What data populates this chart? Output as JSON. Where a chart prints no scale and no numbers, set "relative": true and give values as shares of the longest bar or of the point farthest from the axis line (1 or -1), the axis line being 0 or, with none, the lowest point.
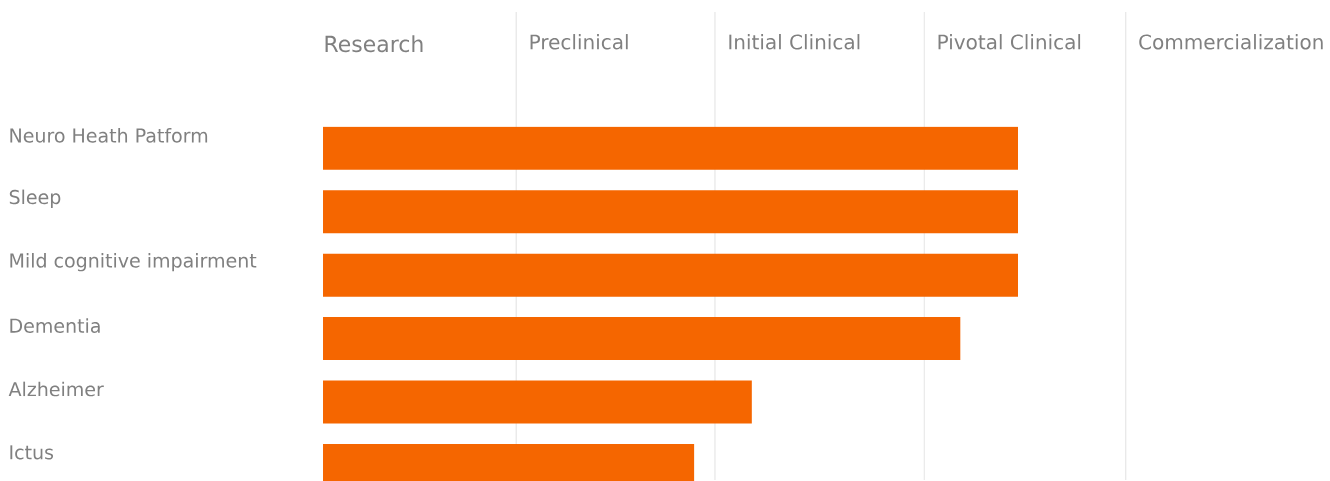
{
  "chart_data": {
    "type": "bar",
    "orientation": "horizontal",
    "relative": true,
    "categories": [
      "Neuro Heath Patform",
      "Sleep",
      "Mild cognitive impairment",
      "Dementia",
      "Alzheimer",
      "Ictus"
    ],
    "values": [
      1,
      1,
      1,
      0.917,
      0.617,
      0.534
    ],
    "color": "#f56600",
    "annotations": [
      "Research"
    ],
    "ref_lines": [
      {
        "axis": "x",
        "value": 0.278,
        "label": "Preclinical",
        "color": "#e6e6e6"
      },
      {
        "axis": "x",
        "value": 0.564,
        "label": "Initial Clinical",
        "color": "#e6e6e6"
      },
      {
        "axis": "x",
        "value": 0.865,
        "label": "Pivotal Clinical",
        "color": "#e6e6e6"
      },
      {
        "axis": "x",
        "value": 1.155,
        "label": "Commercialization",
        "color": "#e6e6e6"
      }
    ]
  }
}
